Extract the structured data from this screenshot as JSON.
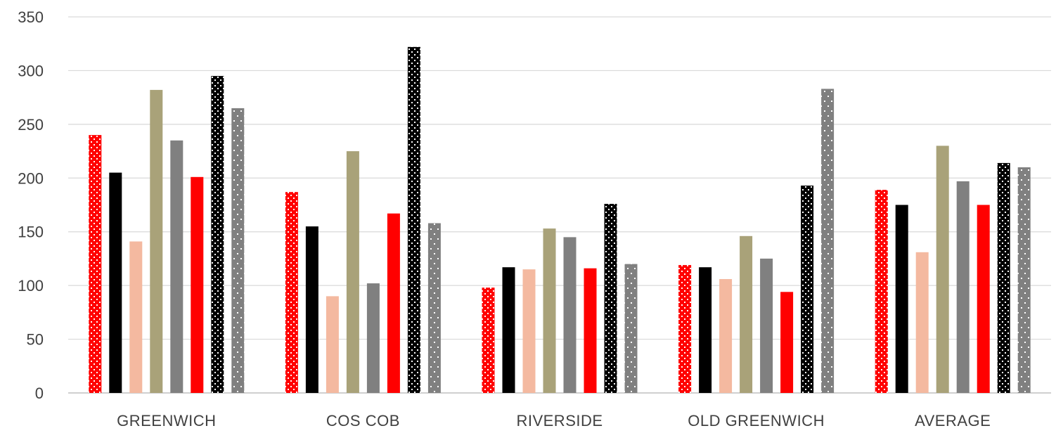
{
  "chart_data": {
    "type": "bar",
    "title": "",
    "xlabel": "",
    "ylabel": "",
    "ylim": [
      0,
      350
    ],
    "yticks": [
      0,
      50,
      100,
      150,
      200,
      250,
      300,
      350
    ],
    "grid": true,
    "legend": "none",
    "categories": [
      "GREENWICH",
      "COS COB",
      "RIVERSIDE",
      "OLD GREENWICH",
      "AVERAGE"
    ],
    "series": [
      {
        "color": "#ff0000",
        "pattern": "dotted-white",
        "values": [
          240,
          187,
          98,
          119,
          189
        ]
      },
      {
        "color": "#000000",
        "pattern": "solid",
        "values": [
          205,
          155,
          117,
          117,
          175
        ]
      },
      {
        "color": "#f4b9a0",
        "pattern": "solid",
        "values": [
          141,
          90,
          115,
          106,
          131
        ]
      },
      {
        "color": "#a9a279",
        "pattern": "solid",
        "values": [
          282,
          225,
          153,
          146,
          230
        ]
      },
      {
        "color": "#808080",
        "pattern": "solid",
        "values": [
          235,
          102,
          145,
          125,
          197
        ]
      },
      {
        "color": "#ff0000",
        "pattern": "solid",
        "values": [
          201,
          167,
          116,
          94,
          175
        ]
      },
      {
        "color": "#000000",
        "pattern": "dotted-white",
        "values": [
          295,
          322,
          176,
          193,
          214
        ]
      },
      {
        "color": "#808080",
        "pattern": "dotted-white-sparse",
        "values": [
          265,
          158,
          120,
          283,
          210
        ]
      }
    ]
  }
}
